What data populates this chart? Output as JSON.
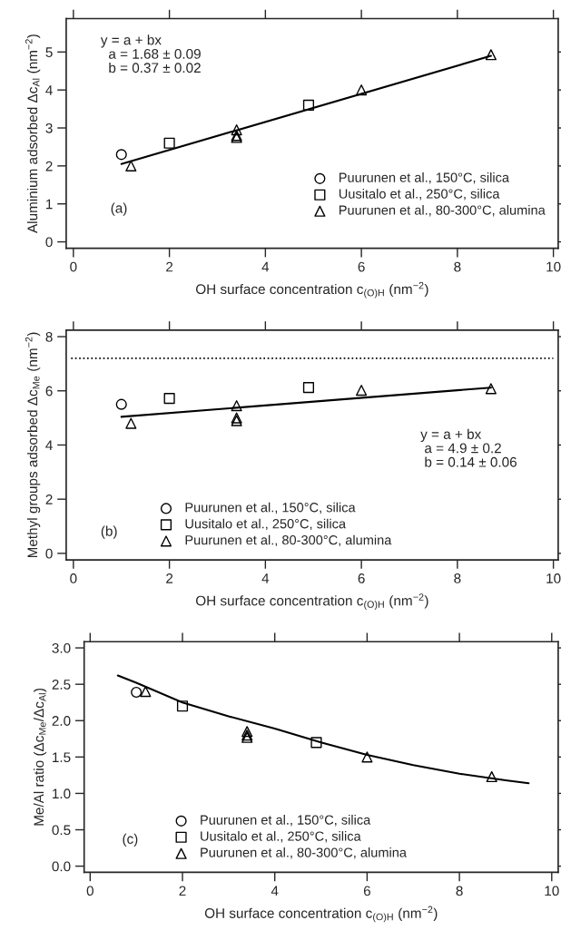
{
  "chart_data": [
    {
      "type": "scatter",
      "xlabel": "OH surface concentration c$_{(O)H}$ (nm$^{−2}$)",
      "ylabel": "Aluminium adsorbed Δc$_{Al}$ (nm$^{−2}$)",
      "xlim": [
        -0.15,
        10.1
      ],
      "xticks": [
        0,
        2,
        4,
        6,
        8,
        10
      ],
      "ylim": [
        -0.17,
        5.88
      ],
      "yticks": [
        0,
        1,
        2,
        3,
        4,
        5
      ],
      "grid": false,
      "legend": "bottom right",
      "series": [
        {
          "name": "Puurunen et al., 150°C, silica",
          "color": "#000000",
          "marker": "circle",
          "x": [
            1.0
          ],
          "values": [
            2.3
          ]
        },
        {
          "name": "Uusitalo et al., 250°C, silica",
          "color": "#000000",
          "marker": "square",
          "x": [
            2.0,
            4.9
          ],
          "values": [
            2.6,
            3.6
          ]
        },
        {
          "name": "Puurunen et al., 80-300°C, alumina",
          "color": "#000000",
          "marker": "triangle",
          "x": [
            1.2,
            3.4,
            3.4,
            3.4,
            6.0,
            8.7
          ],
          "values": [
            2.0,
            2.95,
            2.8,
            2.75,
            4.0,
            4.93
          ]
        },
        {
          "type": "line",
          "color": "#000000",
          "marker": "none",
          "line_style": "solid",
          "x": [
            1.0,
            8.7
          ],
          "values": [
            2.05,
            4.9
          ]
        }
      ],
      "annotations": [
        "y = a + bx\n  a = 1.68 ± 0.09\n  b = 0.37 ± 0.02",
        "(a)"
      ]
    },
    {
      "type": "scatter",
      "xlabel": "OH surface concentration c$_{(O)H}$ (nm$^{−2}$)",
      "ylabel": "Methyl groups adsorbed Δc$_{Me}$ (nm$^{−2}$)",
      "xlim": [
        -0.15,
        10.1
      ],
      "xticks": [
        0,
        2,
        4,
        6,
        8,
        10
      ],
      "ylim": [
        -0.24,
        8.24
      ],
      "yticks": [
        0,
        2,
        4,
        6,
        8
      ],
      "grid": false,
      "legend": "bottom left",
      "ref_lines": [
        {
          "axis": "y",
          "value": 7.2,
          "color": "#000000",
          "line_style": "dotted"
        }
      ],
      "series": [
        {
          "name": "Puurunen et al., 150°C, silica",
          "color": "#000000",
          "marker": "circle",
          "x": [
            1.0
          ],
          "values": [
            5.5
          ]
        },
        {
          "name": "Uusitalo et al., 250°C, silica",
          "color": "#000000",
          "marker": "square",
          "x": [
            2.0,
            4.9
          ],
          "values": [
            5.72,
            6.12
          ]
        },
        {
          "name": "Puurunen et al., 80-300°C, alumina",
          "color": "#000000",
          "marker": "triangle",
          "x": [
            1.2,
            3.4,
            3.4,
            3.4,
            6.0,
            8.7
          ],
          "values": [
            4.8,
            5.45,
            5.0,
            4.9,
            6.02,
            6.08
          ]
        },
        {
          "type": "line",
          "color": "#000000",
          "marker": "none",
          "line_style": "solid",
          "x": [
            1.0,
            8.7
          ],
          "values": [
            5.04,
            6.12
          ]
        }
      ],
      "annotations": [
        "y = a + bx\n a = 4.9 ± 0.2\n b = 0.14 ± 0.06",
        "(b)"
      ]
    },
    {
      "type": "scatter",
      "xlabel": "OH surface concentration c$_{(O)H}$ (nm$^{−2}$)",
      "ylabel": "Me/Al ratio (Δc$_{Me}$/Δc$_{Al}$)",
      "xlim": [
        -0.13,
        10.14
      ],
      "xticks": [
        0,
        2,
        4,
        6,
        8,
        10
      ],
      "ylim": [
        -0.085,
        3.085
      ],
      "yticks": [
        {
          "value": 0,
          "label": "0.0"
        },
        0.5,
        {
          "value": 1,
          "label": "1.0"
        },
        1.5,
        {
          "value": 2,
          "label": "2.0"
        },
        2.5,
        {
          "value": 3,
          "label": "3.0"
        }
      ],
      "grid": false,
      "legend": "bottom left",
      "series": [
        {
          "name": "Puurunen et al., 150°C, silica",
          "color": "#000000",
          "marker": "circle",
          "x": [
            1.0
          ],
          "values": [
            2.39
          ]
        },
        {
          "name": "Uusitalo et al., 250°C, silica",
          "color": "#000000",
          "marker": "square",
          "x": [
            2.0,
            4.9
          ],
          "values": [
            2.2,
            1.7
          ]
        },
        {
          "name": "Puurunen et al., 80-300°C, alumina",
          "color": "#000000",
          "marker": "triangle",
          "x": [
            1.2,
            3.4,
            3.4,
            3.4,
            6.0,
            8.7
          ],
          "values": [
            2.4,
            1.85,
            1.8,
            1.77,
            1.5,
            1.23
          ]
        },
        {
          "type": "line",
          "color": "#000000",
          "marker": "none",
          "line_style": "solid",
          "x": [
            0.6,
            1.0,
            2.0,
            3.0,
            4.0,
            5.0,
            6.0,
            7.0,
            8.0,
            9.0,
            9.5
          ],
          "values": [
            2.62,
            2.52,
            2.25,
            2.06,
            1.89,
            1.7,
            1.53,
            1.39,
            1.27,
            1.18,
            1.14
          ]
        }
      ],
      "annotations": [
        "(c)"
      ]
    }
  ]
}
